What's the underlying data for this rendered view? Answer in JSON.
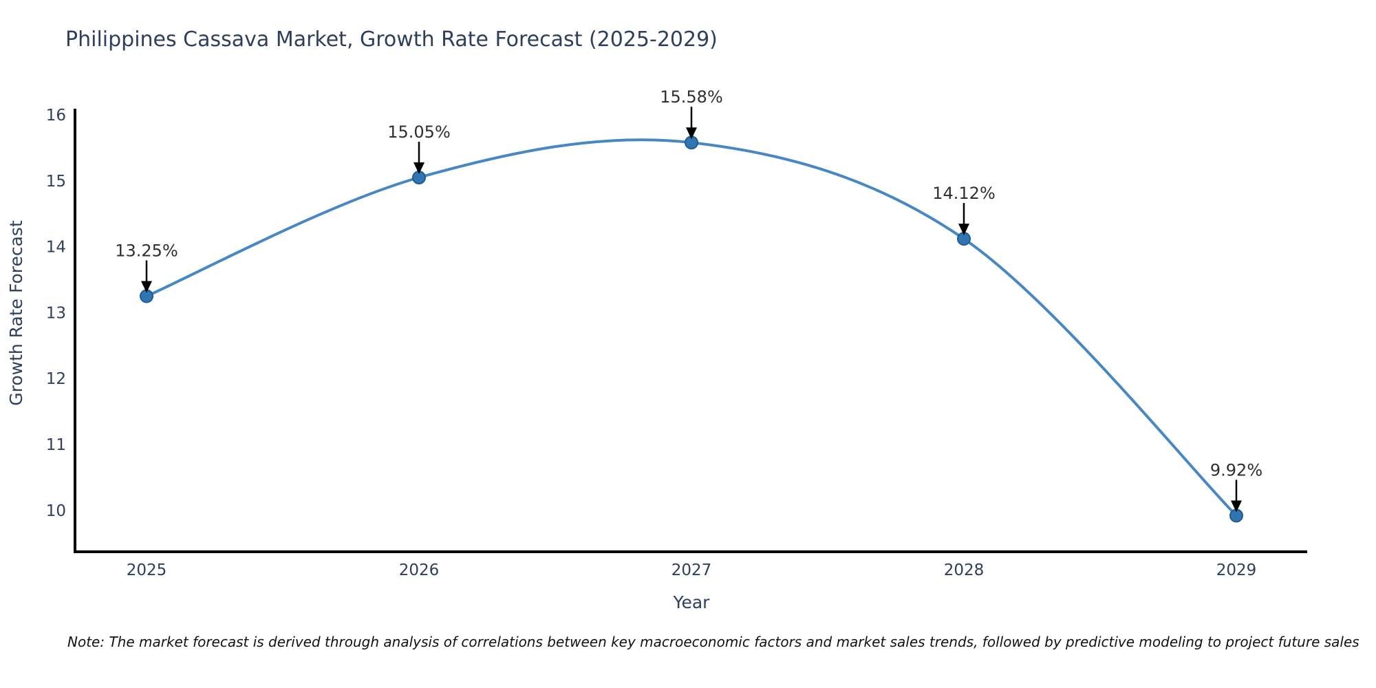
{
  "chart_data": {
    "type": "line",
    "title": "Philippines Cassava Market, Growth Rate Forecast (2025-2029)",
    "xlabel": "Year",
    "ylabel": "Growth Rate Forecast",
    "categories": [
      "2025",
      "2026",
      "2027",
      "2028",
      "2029"
    ],
    "values": [
      13.25,
      15.05,
      15.58,
      14.12,
      9.92
    ],
    "point_labels": [
      "13.25%",
      "15.05%",
      "15.58%",
      "14.12%",
      "9.92%"
    ],
    "yticks": [
      16,
      15,
      14,
      13,
      12,
      11,
      10
    ],
    "ylim": [
      9.37,
      16.09
    ],
    "grid": false,
    "legend": "none",
    "line_color": "#4787c3",
    "marker_color": "#3276b1",
    "marker_edge_color": "#1f5c94",
    "arrow_color": "#000000",
    "annotation_color": "#2f2f2f",
    "axis_text_color": "#2e3f5c",
    "spine_color": "#000000"
  },
  "note": {
    "text": "Note: The market forecast is derived through analysis of correlations between key macroeconomic factors and market sales trends, followed by predictive modeling to project future sales"
  }
}
